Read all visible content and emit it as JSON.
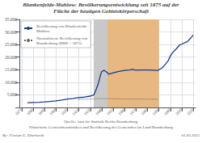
{
  "chart_data": {
    "type": "line",
    "title": "Blankenfelde-Mahlow: Bevölkerungsentwicklung seit 1875 auf der\nFläche der heutigen Gebietskörperschaft",
    "annotations": [
      "Quelle: Amt für Statistik Berlin-Brandenburg",
      "Historische Gemeindestatistiken und Bevölkerung der Gemeinden im Land Brandenburg",
      "By: Florian G. Eberhardt",
      "01.03.2022"
    ],
    "series": [
      {
        "name": "Bevölkerung von Blankenfelde-\nMahlow",
        "color": "#1a3a8a",
        "line_style": "solid",
        "x": [
          1875,
          1880,
          1885,
          1890,
          1895,
          1900,
          1905,
          1910,
          1915,
          1919,
          1925,
          1930,
          1933,
          1935,
          1937,
          1939,
          1940,
          1942,
          1945,
          1946,
          1950,
          1955,
          1960,
          1964,
          1967,
          1970,
          1975,
          1980,
          1985,
          1989,
          1990,
          1993,
          1995,
          1998,
          2000,
          2002,
          2005,
          2008,
          2010,
          2013,
          2015,
          2017,
          2019,
          2020
        ],
        "values": [
          1900,
          1980,
          2050,
          2200,
          2400,
          2600,
          2900,
          3300,
          3600,
          3900,
          4100,
          4500,
          4900,
          7000,
          9500,
          13000,
          14200,
          14800,
          13800,
          13200,
          13800,
          14300,
          14700,
          14900,
          15100,
          14800,
          14900,
          14900,
          14800,
          14700,
          15000,
          15800,
          16800,
          18500,
          20500,
          21800,
          23200,
          24800,
          25200,
          25800,
          26200,
          27200,
          28200,
          28800
        ]
      },
      {
        "name": "Normalisierte Bevölkerung von\nBrandenburg (BRD = 1875)",
        "color": "#666666",
        "line_style": "dotted",
        "x": [
          1919,
          1925,
          1930,
          1933,
          1939,
          1945,
          1950,
          1955,
          1960,
          1970,
          1975,
          1980,
          1985,
          1989
        ],
        "values": [
          3200,
          3250,
          3300,
          3400,
          3550,
          3500,
          3450,
          3400,
          3380,
          3350,
          3350,
          3320,
          3300,
          3280
        ]
      }
    ],
    "shaded_regions": [
      {
        "start": 1933,
        "end": 1945,
        "color": "#c8c8c8"
      },
      {
        "start": 1945,
        "end": 1990,
        "color": "#e8b882"
      }
    ],
    "xlim": [
      1868,
      2022
    ],
    "xticks": [
      1870,
      1880,
      1890,
      1900,
      1910,
      1920,
      1930,
      1940,
      1950,
      1960,
      1970,
      1980,
      1990,
      2000,
      2010,
      2020
    ],
    "ylim": [
      0,
      35000
    ],
    "yticks": [
      {
        "value": 0,
        "label": ""
      },
      {
        "value": 5000,
        "label": "5.000"
      },
      {
        "value": 10000,
        "label": "10.000"
      },
      {
        "value": 15000,
        "label": "15.000"
      },
      {
        "value": 20000,
        "label": "20.000"
      },
      {
        "value": 25000,
        "label": "25.000"
      },
      {
        "value": 30000,
        "label": "30.000"
      },
      {
        "value": 35000,
        "label": "35.000"
      }
    ],
    "grid": true,
    "legend": "upper left"
  }
}
